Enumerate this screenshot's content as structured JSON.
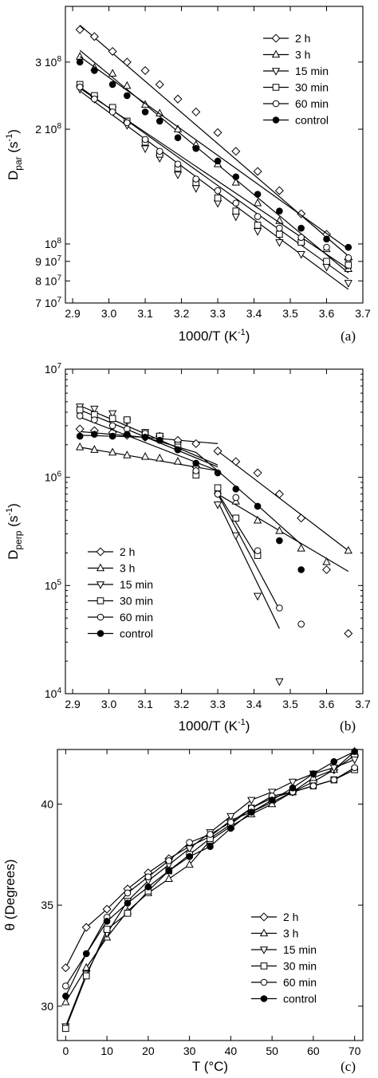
{
  "series_styles": [
    {
      "marker": "diamond",
      "fill": "#ffffff"
    },
    {
      "marker": "triangle-up",
      "fill": "#ffffff"
    },
    {
      "marker": "triangle-down",
      "fill": "#ffffff"
    },
    {
      "marker": "square",
      "fill": "#ffffff"
    },
    {
      "marker": "circle",
      "fill": "#ffffff"
    },
    {
      "marker": "circle",
      "fill": "#000000"
    }
  ],
  "chart_data": [
    {
      "type": "scatter",
      "panel_label": "(a)",
      "xlabel": "1000/T (K",
      "xlabel_sup": "-1",
      "xlabel_end": ")",
      "ylabel_main": "D",
      "ylabel_sub": "par",
      "ylabel_unit": " (s",
      "ylabel_sup": "-1",
      "ylabel_end": ")",
      "xlim": [
        2.88,
        3.7
      ],
      "ylim": [
        70000000,
        420000000
      ],
      "yscale": "log",
      "xticks": [
        2.9,
        3.0,
        3.1,
        3.2,
        3.3,
        3.4,
        3.5,
        3.6,
        3.7
      ],
      "xtick_labels": [
        "2.9",
        "3.0",
        "3.1",
        "3.2",
        "3.3",
        "3.4",
        "3.5",
        "3.6",
        "3.7"
      ],
      "yticks": [
        70000000,
        80000000,
        90000000,
        100000000,
        200000000,
        300000000
      ],
      "ytick_labels": [
        "7 10^7",
        "8 10^7",
        "9 10^7",
        "10^8",
        "2 10^8",
        "3 10^8"
      ],
      "legend": "top-right",
      "series": [
        {
          "name": "2 h",
          "x": [
            2.92,
            2.96,
            3.01,
            3.05,
            3.1,
            3.14,
            3.19,
            3.24,
            3.3,
            3.35,
            3.41,
            3.47,
            3.53,
            3.6,
            3.66
          ],
          "y": [
            365000000,
            350000000,
            320000000,
            300000000,
            285000000,
            262000000,
            240000000,
            222000000,
            196000000,
            175000000,
            155000000,
            138000000,
            120000000,
            106000000,
            91000000
          ],
          "fit": [
            [
              2.92,
              375000000
            ],
            [
              3.66,
              93000000
            ]
          ]
        },
        {
          "name": "3 h",
          "x": [
            2.92,
            2.96,
            3.01,
            3.05,
            3.1,
            3.14,
            3.19,
            3.24,
            3.3,
            3.35,
            3.41,
            3.47,
            3.53,
            3.6,
            3.66
          ],
          "y": [
            310000000,
            290000000,
            280000000,
            260000000,
            232000000,
            220000000,
            200000000,
            182000000,
            162000000,
            145000000,
            128000000,
            115000000,
            102000000,
            97000000,
            86000000
          ],
          "fit": [
            [
              2.92,
              322000000
            ],
            [
              3.66,
              84000000
            ]
          ]
        },
        {
          "name": "15 min",
          "x": [
            2.92,
            2.96,
            3.01,
            3.05,
            3.1,
            3.14,
            3.19,
            3.24,
            3.3,
            3.35,
            3.41,
            3.47,
            3.53,
            3.6,
            3.66
          ],
          "y": [
            255000000,
            240000000,
            225000000,
            205000000,
            178000000,
            168000000,
            152000000,
            140000000,
            128000000,
            118000000,
            108000000,
            101000000,
            94000000,
            87000000,
            79000000
          ],
          "fit": [
            [
              2.92,
              252000000
            ],
            [
              3.66,
              76000000
            ]
          ]
        },
        {
          "name": "30 min",
          "x": [
            2.92,
            2.96,
            3.01,
            3.05,
            3.1,
            3.14,
            3.19,
            3.24,
            3.3,
            3.35,
            3.41,
            3.47,
            3.53,
            3.6,
            3.66
          ],
          "y": [
            262000000,
            245000000,
            228000000,
            210000000,
            185000000,
            172000000,
            158000000,
            145000000,
            132000000,
            122000000,
            112000000,
            106000000,
            101000000,
            90000000,
            88000000
          ],
          "fit": [
            [
              2.92,
              258000000
            ],
            [
              3.66,
              81000000
            ]
          ]
        },
        {
          "name": "60 min",
          "x": [
            2.92,
            2.96,
            3.01,
            3.05,
            3.1,
            3.14,
            3.19,
            3.24,
            3.3,
            3.35,
            3.41,
            3.47,
            3.53,
            3.6,
            3.66
          ],
          "y": [
            258000000,
            240000000,
            222000000,
            208000000,
            188000000,
            175000000,
            162000000,
            148000000,
            138000000,
            128000000,
            118000000,
            110000000,
            104000000,
            98000000,
            92000000
          ],
          "fit": [
            [
              2.92,
              256000000
            ],
            [
              3.66,
              86000000
            ]
          ]
        },
        {
          "name": "control",
          "x": [
            2.92,
            2.96,
            3.01,
            3.05,
            3.1,
            3.14,
            3.19,
            3.24,
            3.3,
            3.35,
            3.41,
            3.47,
            3.53,
            3.6,
            3.66
          ],
          "y": [
            300000000,
            285000000,
            262000000,
            245000000,
            222000000,
            210000000,
            190000000,
            178000000,
            165000000,
            150000000,
            135000000,
            122000000,
            110000000,
            103000000,
            98000000
          ],
          "fit": [
            [
              2.92,
              310000000
            ],
            [
              3.66,
              97000000
            ]
          ]
        }
      ]
    },
    {
      "type": "scatter",
      "panel_label": "(b)",
      "xlabel": "1000/T (K",
      "xlabel_sup": "-1",
      "xlabel_end": ")",
      "ylabel_main": "D",
      "ylabel_sub": "perp",
      "ylabel_unit": " (s",
      "ylabel_sup": "-1",
      "ylabel_end": ")",
      "xlim": [
        2.88,
        3.7
      ],
      "ylim": [
        10000,
        10000000
      ],
      "yscale": "log",
      "xticks": [
        2.9,
        3.0,
        3.1,
        3.2,
        3.3,
        3.4,
        3.5,
        3.6,
        3.7
      ],
      "xtick_labels": [
        "2.9",
        "3.0",
        "3.1",
        "3.2",
        "3.3",
        "3.4",
        "3.5",
        "3.6",
        "3.7"
      ],
      "yticks": [
        10000,
        100000,
        1000000,
        10000000
      ],
      "ytick_labels": [
        "10^4",
        "10^5",
        "10^6",
        "10^7"
      ],
      "legend": "lower-left",
      "series": [
        {
          "name": "2 h",
          "x": [
            2.92,
            2.96,
            3.01,
            3.05,
            3.1,
            3.14,
            3.19,
            3.24,
            3.3,
            3.35,
            3.41,
            3.47,
            3.53,
            3.6,
            3.66
          ],
          "y": [
            2800000,
            2700000,
            2600000,
            2450000,
            2350000,
            2400000,
            2200000,
            2050000,
            1750000,
            1400000,
            1100000,
            700000,
            420000,
            140000,
            36000
          ],
          "fit_segments": [
            [
              [
                2.92,
                2650000
              ],
              [
                3.3,
                2050000
              ]
            ],
            [
              [
                3.3,
                1750000
              ],
              [
                3.66,
                210000
              ]
            ]
          ]
        },
        {
          "name": "3 h",
          "x": [
            2.92,
            2.96,
            3.01,
            3.05,
            3.1,
            3.14,
            3.19,
            3.24,
            3.3,
            3.35,
            3.41,
            3.47,
            3.53,
            3.6,
            3.66
          ],
          "y": [
            1900000,
            1800000,
            1700000,
            1600000,
            1550000,
            1500000,
            1400000,
            1300000,
            750000,
            600000,
            400000,
            320000,
            220000,
            165000,
            210000
          ],
          "fit_segments": [
            [
              [
                2.92,
                1900000
              ],
              [
                3.3,
                1150000
              ]
            ],
            [
              [
                3.3,
                700000
              ],
              [
                3.66,
                135000
              ]
            ]
          ]
        },
        {
          "name": "15 min",
          "x": [
            2.92,
            2.96,
            3.01,
            3.05,
            3.1,
            3.14,
            3.19,
            3.24,
            3.3,
            3.35,
            3.41,
            3.47
          ],
          "y": [
            4500000,
            4300000,
            3900000,
            3300000,
            2600000,
            2400000,
            2000000,
            1200000,
            560000,
            290000,
            80000,
            13000
          ],
          "fit_segments": [
            [
              [
                2.92,
                4600000
              ],
              [
                3.3,
                1300000
              ]
            ],
            [
              [
                3.3,
                600000
              ],
              [
                3.47,
                40000
              ]
            ]
          ]
        },
        {
          "name": "30 min",
          "x": [
            2.92,
            2.96,
            3.01,
            3.05,
            3.1,
            3.14,
            3.19,
            3.24,
            3.3,
            3.35,
            3.41
          ],
          "y": [
            4200000,
            3800000,
            3500000,
            3400000,
            2600000,
            2400000,
            1900000,
            1050000,
            800000,
            420000,
            190000
          ],
          "fit_segments": [
            [
              [
                2.92,
                4200000
              ],
              [
                3.3,
                1250000
              ]
            ],
            [
              [
                3.3,
                720000
              ],
              [
                3.41,
                180000
              ]
            ]
          ]
        },
        {
          "name": "60 min",
          "x": [
            2.92,
            2.96,
            3.01,
            3.05,
            3.1,
            3.14,
            3.19,
            3.24,
            3.3,
            3.35,
            3.41,
            3.47,
            3.53
          ],
          "y": [
            3700000,
            3400000,
            3000000,
            2800000,
            2550000,
            2200000,
            1800000,
            1150000,
            700000,
            650000,
            210000,
            62000,
            44000
          ],
          "fit_segments": [
            [
              [
                2.92,
                3600000
              ],
              [
                3.3,
                1150000
              ]
            ],
            [
              [
                3.3,
                700000
              ],
              [
                3.47,
                60000
              ]
            ]
          ]
        },
        {
          "name": "control",
          "x": [
            2.92,
            2.96,
            3.01,
            3.05,
            3.1,
            3.14,
            3.19,
            3.24,
            3.3,
            3.35,
            3.41,
            3.47,
            3.53
          ],
          "y": [
            2400000,
            2500000,
            2400000,
            2500000,
            2350000,
            2200000,
            1800000,
            1350000,
            1100000,
            780000,
            540000,
            260000,
            140000
          ],
          "fit_segments": [
            [
              [
                2.92,
                2450000
              ],
              [
                3.1,
                2350000
              ],
              [
                3.24,
                1700000
              ],
              [
                3.3,
                1150000
              ],
              [
                3.41,
                550000
              ],
              [
                3.53,
                240000
              ]
            ]
          ]
        }
      ]
    },
    {
      "type": "line",
      "panel_label": "(c)",
      "xlabel": "T (°C)",
      "ylabel_main": "θ",
      "ylabel_rest": "(Degrees)",
      "xlim": [
        -2,
        72
      ],
      "ylim": [
        28.3,
        42.7
      ],
      "yscale": "linear",
      "xticks": [
        0,
        10,
        20,
        30,
        40,
        50,
        60,
        70
      ],
      "xtick_labels": [
        "0",
        "10",
        "20",
        "30",
        "40",
        "50",
        "60",
        "70"
      ],
      "yticks": [
        30,
        35,
        40
      ],
      "ytick_labels": [
        "30",
        "35",
        "40"
      ],
      "legend": "lower-right",
      "x": [
        0,
        5,
        10,
        15,
        20,
        25,
        30,
        35,
        40,
        45,
        50,
        55,
        60,
        65,
        70
      ],
      "series": [
        {
          "name": "2 h",
          "y": [
            31.9,
            33.9,
            34.8,
            35.8,
            36.6,
            37.3,
            37.9,
            38.4,
            39.2,
            39.6,
            40.1,
            40.6,
            41.1,
            41.7,
            42.4
          ]
        },
        {
          "name": "3 h",
          "y": [
            30.2,
            31.9,
            33.4,
            34.7,
            35.6,
            36.3,
            37.0,
            38.2,
            38.9,
            39.5,
            40.0,
            40.6,
            41.3,
            41.7,
            42.6
          ]
        },
        {
          "name": "15 min",
          "y": [
            29.0,
            31.6,
            33.6,
            35.2,
            36.2,
            37.0,
            37.8,
            38.6,
            39.4,
            40.2,
            40.6,
            41.1,
            41.5,
            41.8,
            42.2
          ]
        },
        {
          "name": "30 min",
          "y": [
            28.9,
            31.5,
            33.8,
            34.6,
            35.7,
            36.7,
            37.5,
            38.3,
            39.0,
            39.8,
            40.3,
            40.6,
            40.9,
            41.2,
            41.7
          ]
        },
        {
          "name": "60 min",
          "y": [
            31.0,
            32.6,
            34.4,
            35.6,
            36.4,
            37.2,
            38.1,
            38.5,
            39.1,
            39.8,
            40.4,
            40.6,
            40.9,
            41.2,
            41.8
          ]
        },
        {
          "name": "control",
          "y": [
            30.5,
            32.6,
            34.2,
            35.1,
            35.9,
            36.7,
            37.4,
            37.9,
            38.8,
            39.6,
            40.2,
            40.8,
            41.5,
            42.1,
            42.6
          ]
        }
      ]
    }
  ]
}
